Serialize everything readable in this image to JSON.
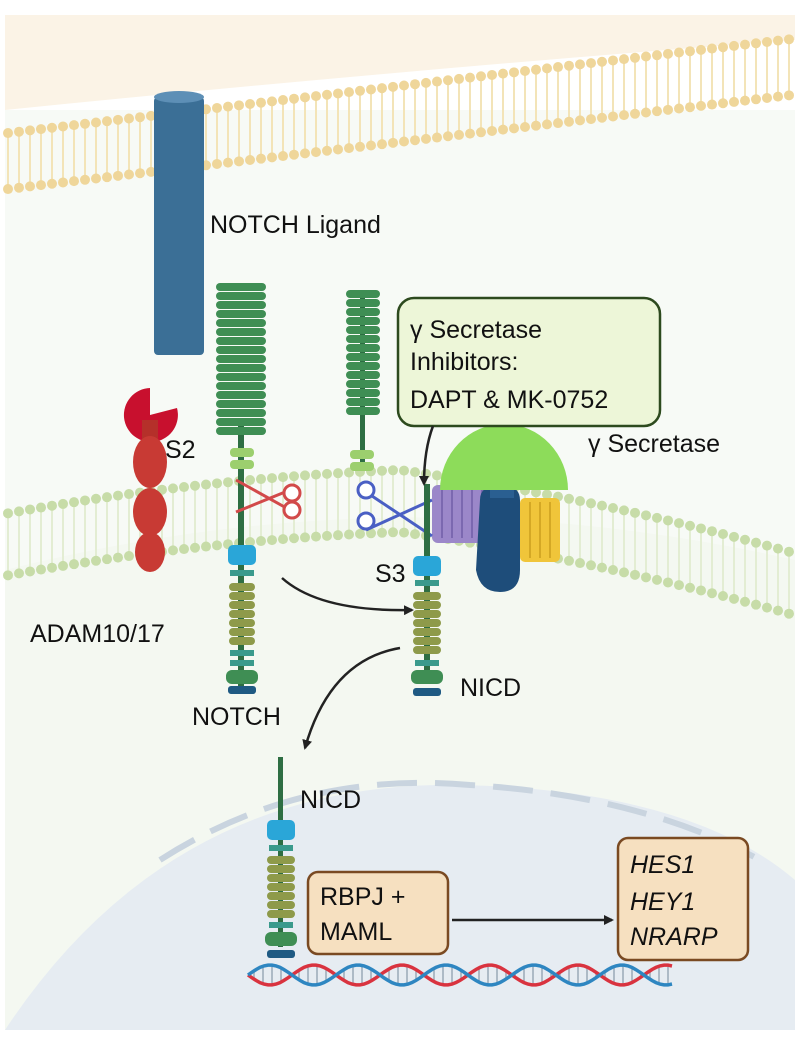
{
  "labels": {
    "notch_ligand": "NOTCH Ligand",
    "s2": "S2",
    "s3": "S3",
    "adam": "ADAM10/17",
    "notch": "NOTCH",
    "nicd_membrane": "NICD",
    "nicd_nuclear": "NICD",
    "gamma_secretase": "γ Secretase"
  },
  "inhibitor_box": {
    "lines": [
      "γ Secretase",
      "Inhibitors:",
      "DAPT & MK-0752"
    ]
  },
  "rbpj_box": {
    "lines": [
      "RBPJ +",
      "MAML"
    ]
  },
  "genes_box": {
    "lines": [
      "HES1",
      "HEY1",
      "NRARP"
    ]
  },
  "colors": {
    "top_membrane": "#f2dfa3",
    "lower_membrane": "#cfe0b0",
    "ligand": "#3b6f96",
    "adam": "#c83a34",
    "notch_green": "#3f8e54",
    "light_green": "#9ccf6e",
    "cyan": "#2aa6d8",
    "olive": "#8e9a4a",
    "teal": "#3a9a8c",
    "navy": "#1f5a83",
    "secretase_green": "#8ddc5a",
    "secretase_navy": "#1e4d7a",
    "secretase_purple": "#9b87c9",
    "secretase_yellow": "#f0c53a",
    "inhibitor_fill": "#edf6d8",
    "gene_fill": "#f6e0c0",
    "dna_red": "#d9333f",
    "dna_blue": "#2e86c1"
  }
}
